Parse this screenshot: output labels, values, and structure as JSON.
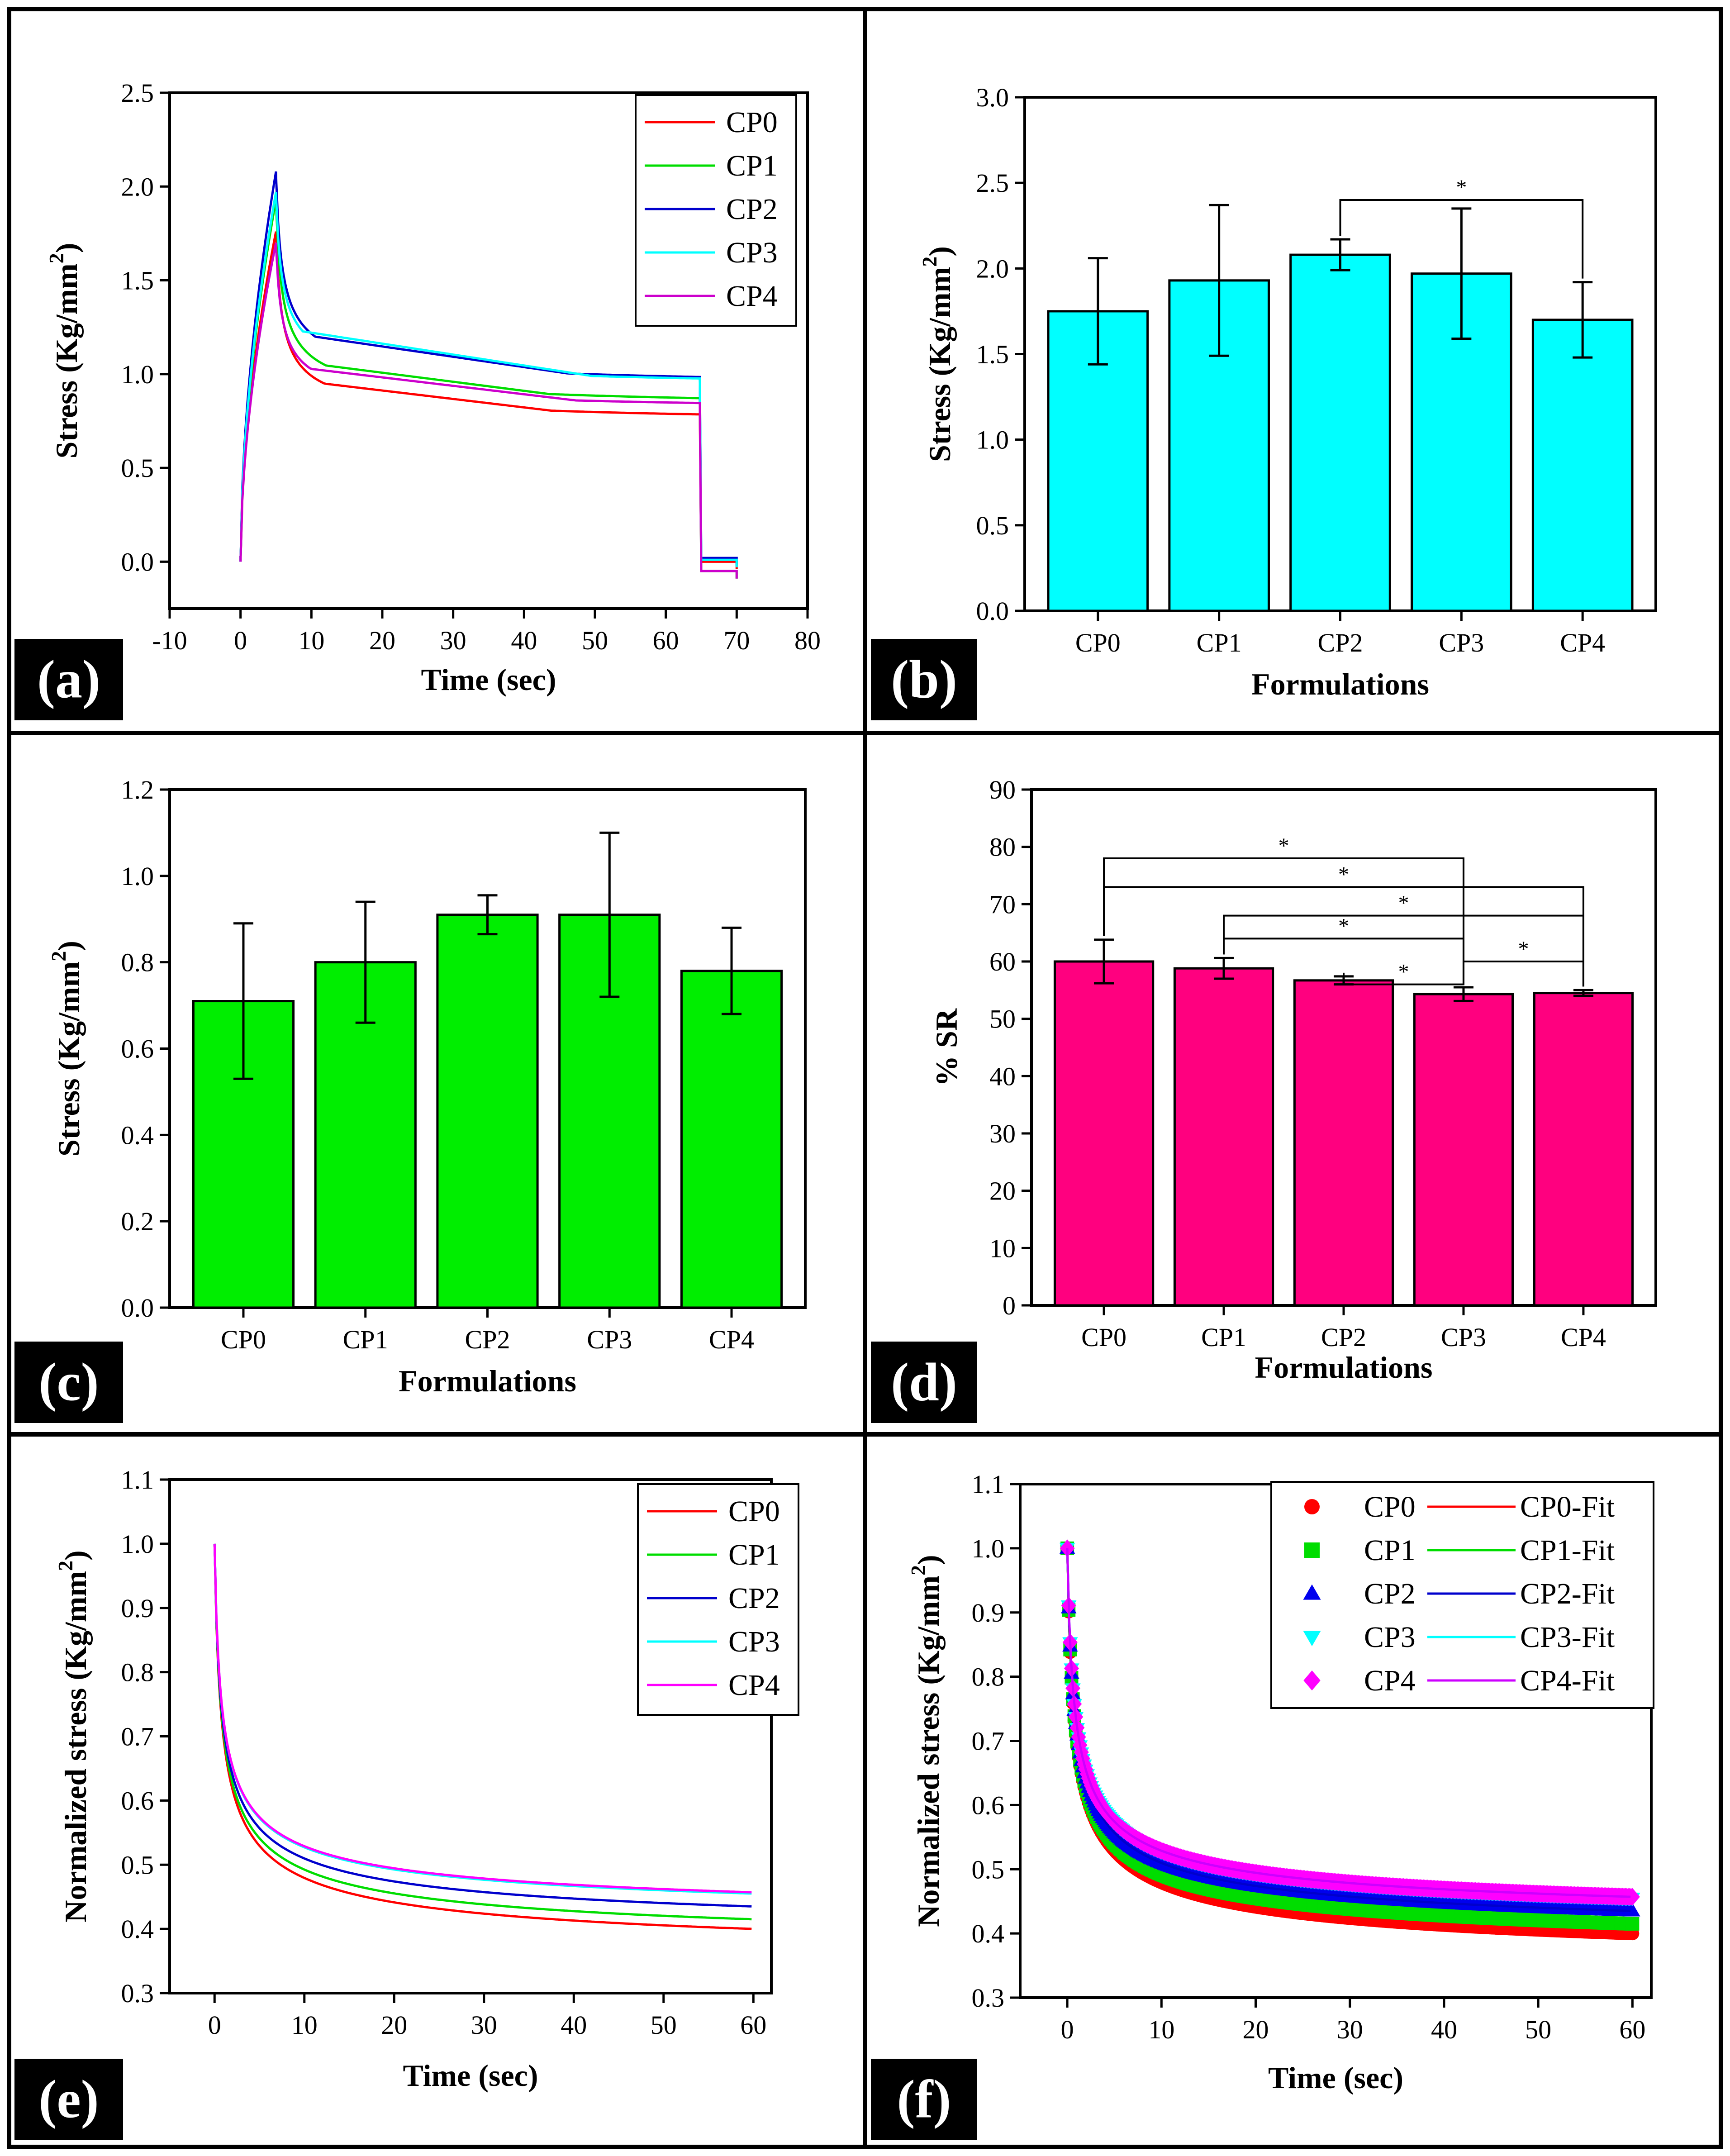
{
  "chart_data": [
    {
      "panel": "(a)",
      "type": "line",
      "xlabel": "Time (sec)",
      "ylabel": "Stress (Kg/mm",
      "ylabel_sup": "2",
      "ylabel_end": ")",
      "xlim": [
        -10,
        80
      ],
      "ylim": [
        -0.25,
        2.5
      ],
      "xticks": [
        -10,
        0,
        10,
        20,
        30,
        40,
        50,
        60,
        70,
        80
      ],
      "yticks": [
        "0.0",
        "0.5",
        "1.0",
        "1.5",
        "2.0",
        "2.5"
      ],
      "legend_position": "top-right",
      "series": [
        {
          "name": "CP0",
          "color": "#ff0000",
          "peak": 1.76,
          "plateau_start": 0.98,
          "plateau_end": 0.71,
          "after": 0.0
        },
        {
          "name": "CP1",
          "color": "#00dd00",
          "peak": 1.93,
          "plateau_start": 1.08,
          "plateau_end": 0.79,
          "after": -0.05
        },
        {
          "name": "CP2",
          "color": "#0000cc",
          "peak": 2.08,
          "plateau_start": 1.23,
          "plateau_end": 0.9,
          "after": 0.02
        },
        {
          "name": "CP3",
          "color": "#00ffff",
          "peak": 1.97,
          "plateau_start": 1.25,
          "plateau_end": 0.9,
          "after": 0.01
        },
        {
          "name": "CP4",
          "color": "#cc00cc",
          "peak": 1.7,
          "plateau_start": 1.05,
          "plateau_end": 0.78,
          "after": -0.05
        }
      ]
    },
    {
      "panel": "(b)",
      "type": "bar",
      "xlabel": "Formulations",
      "ylabel": "Stress (Kg/mm",
      "ylabel_sup": "2",
      "ylabel_end": ")",
      "ylim": [
        0,
        3.0
      ],
      "yticks": [
        "0.0",
        "0.5",
        "1.0",
        "1.5",
        "2.0",
        "2.5",
        "3.0"
      ],
      "bar_color": "#00ffff",
      "categories": [
        "CP0",
        "CP1",
        "CP2",
        "CP3",
        "CP4"
      ],
      "values": [
        1.75,
        1.93,
        2.08,
        1.97,
        1.7
      ],
      "errors": [
        0.31,
        0.44,
        0.09,
        0.38,
        0.22
      ],
      "significance": [
        {
          "from": 2,
          "to": 4,
          "level": 2.4,
          "label": "*"
        }
      ]
    },
    {
      "panel": "(c)",
      "type": "bar",
      "xlabel": "Formulations",
      "ylabel": "Stress (Kg/mm",
      "ylabel_sup": "2",
      "ylabel_end": ")",
      "ylim": [
        0,
        1.2
      ],
      "yticks": [
        "0.0",
        "0.2",
        "0.4",
        "0.6",
        "0.8",
        "1.0",
        "1.2"
      ],
      "bar_color": "#00ee00",
      "categories": [
        "CP0",
        "CP1",
        "CP2",
        "CP3",
        "CP4"
      ],
      "values": [
        0.71,
        0.8,
        0.91,
        0.91,
        0.78
      ],
      "errors": [
        0.18,
        0.14,
        0.045,
        0.19,
        0.1
      ],
      "significance": []
    },
    {
      "panel": "(d)",
      "type": "bar",
      "xlabel": "Formulations",
      "ylabel": "% SR",
      "ylim": [
        0,
        90
      ],
      "yticks": [
        "0",
        "10",
        "20",
        "30",
        "40",
        "50",
        "60",
        "70",
        "80",
        "90"
      ],
      "bar_color": "#ff007f",
      "categories": [
        "CP0",
        "CP1",
        "CP2",
        "CP3",
        "CP4"
      ],
      "values": [
        60.0,
        58.8,
        56.7,
        54.3,
        54.5
      ],
      "errors": [
        3.8,
        1.8,
        0.7,
        1.2,
        0.5
      ],
      "significance": [
        {
          "from": 0,
          "to": 3,
          "level": 78,
          "label": "*"
        },
        {
          "from": 0,
          "to": 4,
          "level": 73,
          "label": "*"
        },
        {
          "from": 1,
          "to": 4,
          "level": 68,
          "label": "*"
        },
        {
          "from": 1,
          "to": 3,
          "level": 64,
          "label": "*"
        },
        {
          "from": 3,
          "to": 4,
          "level": 60,
          "label": "*"
        },
        {
          "from": 2,
          "to": 3,
          "level": 56,
          "label": "*"
        }
      ]
    },
    {
      "panel": "(e)",
      "type": "line",
      "xlabel": "Time (sec)",
      "ylabel": "Normalized stress (Kg/mm",
      "ylabel_sup": "2",
      "ylabel_end": ")",
      "xlim": [
        -5,
        62
      ],
      "ylim": [
        0.3,
        1.1
      ],
      "xticks": [
        0,
        10,
        20,
        30,
        40,
        50,
        60
      ],
      "yticks": [
        "0.3",
        "0.4",
        "0.5",
        "0.6",
        "0.7",
        "0.8",
        "0.9",
        "1.0",
        "1.1"
      ],
      "legend_position": "top-right",
      "series": [
        {
          "name": "CP0",
          "color": "#ff0000",
          "end": 0.4
        },
        {
          "name": "CP1",
          "color": "#00dd00",
          "end": 0.415
        },
        {
          "name": "CP2",
          "color": "#0000cc",
          "end": 0.435
        },
        {
          "name": "CP3",
          "color": "#00ffff",
          "end": 0.455
        },
        {
          "name": "CP4",
          "color": "#ff00ff",
          "end": 0.457
        }
      ]
    },
    {
      "panel": "(f)",
      "type": "scatter",
      "xlabel": "Time (sec)",
      "ylabel": "Normalized stress (Kg/mm",
      "ylabel_sup": "2",
      "ylabel_end": ")",
      "xlim": [
        -5,
        62
      ],
      "ylim": [
        0.3,
        1.1
      ],
      "xticks": [
        0,
        10,
        20,
        30,
        40,
        50,
        60
      ],
      "yticks": [
        "0.3",
        "0.4",
        "0.5",
        "0.6",
        "0.7",
        "0.8",
        "0.9",
        "1.0",
        "1.1"
      ],
      "legend_position": "top-right",
      "series": [
        {
          "name": "CP0",
          "fit_name": "CP0-Fit",
          "color": "#ff0000",
          "fit_color": "#ff0000",
          "marker": "circle",
          "end": 0.4
        },
        {
          "name": "CP1",
          "fit_name": "CP1-Fit",
          "color": "#00dd00",
          "fit_color": "#00dd00",
          "marker": "square",
          "end": 0.415
        },
        {
          "name": "CP2",
          "fit_name": "CP2-Fit",
          "color": "#0000ee",
          "fit_color": "#0000cc",
          "marker": "triangle-up",
          "end": 0.435
        },
        {
          "name": "CP3",
          "fit_name": "CP3-Fit",
          "color": "#00ffff",
          "fit_color": "#00ffff",
          "marker": "triangle-down",
          "end": 0.455
        },
        {
          "name": "CP4",
          "fit_name": "CP4-Fit",
          "color": "#ff00ff",
          "fit_color": "#cc00ff",
          "marker": "diamond",
          "end": 0.457
        }
      ]
    }
  ]
}
